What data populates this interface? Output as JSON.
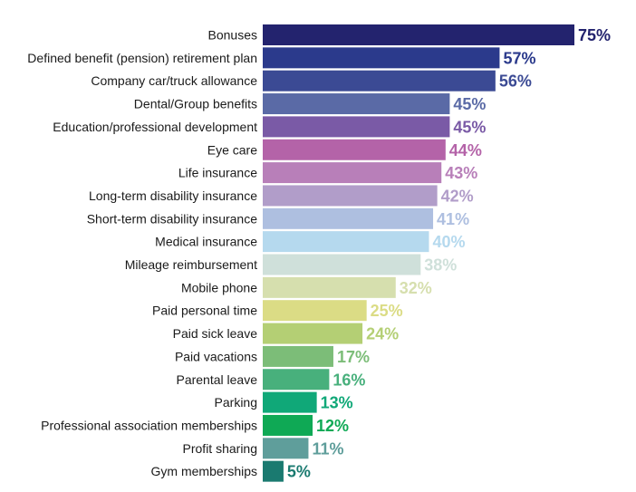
{
  "chart_data": {
    "type": "bar",
    "orientation": "horizontal",
    "title": "",
    "xlabel": "",
    "ylabel": "",
    "xlim": [
      0,
      75
    ],
    "grid": false,
    "legend": "none",
    "value_suffix": "%",
    "categories": [
      "Bonuses",
      "Defined benefit (pension) retirement plan",
      "Company car/truck allowance",
      "Dental/Group benefits",
      "Education/professional development",
      "Eye care",
      "Life insurance",
      "Long-term disability insurance",
      "Short-term disability insurance",
      "Medical insurance",
      "Mileage reimbursement",
      "Mobile phone",
      "Paid personal time",
      "Paid sick leave",
      "Paid vacations",
      "Parental leave",
      "Parking",
      "Professional association memberships",
      "Profit sharing",
      "Gym memberships"
    ],
    "values": [
      75,
      57,
      56,
      45,
      45,
      44,
      43,
      42,
      41,
      40,
      38,
      32,
      25,
      24,
      17,
      16,
      13,
      12,
      11,
      5
    ],
    "data_labels": [
      "75%",
      "57%",
      "56%",
      "45%",
      "45%",
      "44%",
      "43%",
      "42%",
      "41%",
      "40%",
      "38%",
      "32%",
      "25%",
      "24%",
      "17%",
      "16%",
      "13%",
      "12%",
      "11%",
      "5%"
    ],
    "colors": [
      "#23236e",
      "#2b3a8c",
      "#3b4a94",
      "#5a6aa6",
      "#7a5aa6",
      "#b463a8",
      "#b87fb9",
      "#b19dc9",
      "#aebfe0",
      "#b5d9ee",
      "#cfe0da",
      "#d6dfae",
      "#dbdc85",
      "#b4cf74",
      "#7cbd78",
      "#48b07c",
      "#10a878",
      "#0fa955",
      "#5f9e9b",
      "#1a7a70"
    ]
  }
}
